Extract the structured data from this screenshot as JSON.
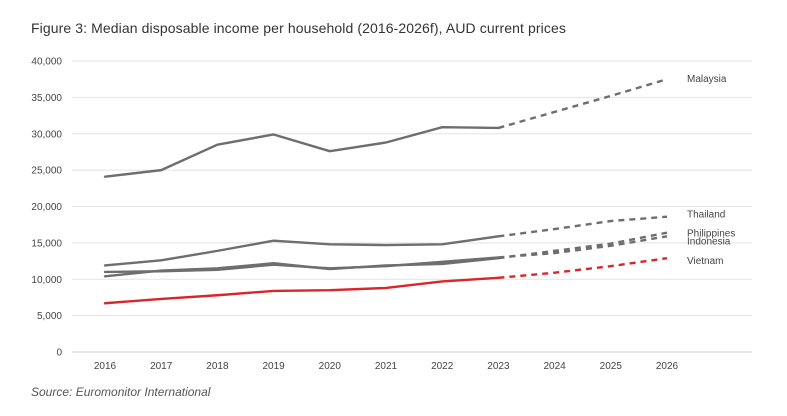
{
  "title": "Figure 3: Median disposable income per household (2016-2026f), AUD current prices",
  "source": "Source:  Euromonitor International",
  "colors": {
    "grey": "#6e6e6e",
    "red": "#d8262b",
    "grid": "#e3e3e3",
    "axis": "#cfcfcf"
  },
  "chart_data": {
    "type": "line",
    "categories": [
      "2016",
      "2017",
      "2018",
      "2019",
      "2020",
      "2021",
      "2022",
      "2023",
      "2024",
      "2025",
      "2026"
    ],
    "y_ticks": [
      "0",
      "5,000",
      "10,000",
      "15,000",
      "20,000",
      "25,000",
      "30,000",
      "35,000",
      "40,000"
    ],
    "ylim": [
      0,
      40000
    ],
    "actual_through": "2023",
    "grid": true,
    "series": [
      {
        "name": "Malaysia",
        "color": "#6e6e6e",
        "values": [
          24100,
          25000,
          28500,
          29900,
          27600,
          28800,
          30900,
          30800,
          33000,
          35200,
          37500
        ]
      },
      {
        "name": "Thailand",
        "color": "#6e6e6e",
        "values": [
          11900,
          12600,
          13900,
          15300,
          14800,
          14700,
          14800,
          15900,
          16900,
          18000,
          18600
        ]
      },
      {
        "name": "Philippines",
        "color": "#6e6e6e",
        "values": [
          10400,
          11200,
          11500,
          12200,
          11400,
          11900,
          12100,
          12900,
          13900,
          14900,
          16400
        ]
      },
      {
        "name": "Indonesia",
        "color": "#6e6e6e",
        "values": [
          11000,
          11100,
          11300,
          12000,
          11500,
          11800,
          12400,
          13000,
          13600,
          14600,
          15900
        ]
      },
      {
        "name": "Vietnam",
        "color": "#d8262b",
        "values": [
          6700,
          7300,
          7800,
          8400,
          8500,
          8800,
          9700,
          10200,
          10900,
          11800,
          12900
        ]
      }
    ]
  }
}
